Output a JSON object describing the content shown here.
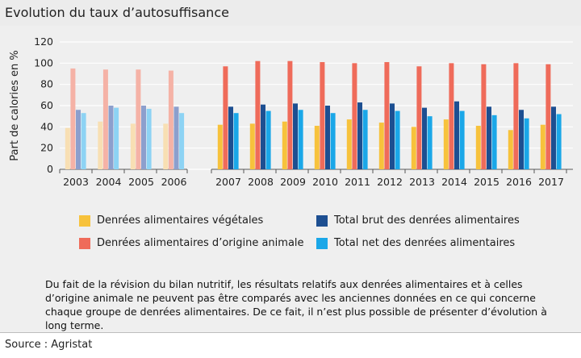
{
  "title": "Evolution du taux d’autosuffisance",
  "source": "Source : Agristat",
  "note": "Du fait de la révision du bilan nutritif, les résultats relatifs aux denrées alimentaires et à celles d’origine animale ne peuvent pas être comparés avec les anciennes données en ce qui concerne chaque groupe de denrées alimentaires. De ce fait, il n’est plus possible de présenter d’évolution à long terme.",
  "colors": {
    "panel_bg": "#efefef",
    "series_full": [
      "#f7c23c",
      "#ef6b5a",
      "#1d4f91",
      "#1aa7e8"
    ],
    "series_faded": [
      "#f8dfb3",
      "#f5b2a6",
      "#8c9fcd",
      "#8dd3f4"
    ]
  },
  "chart_data": {
    "type": "bar",
    "title": "",
    "xlabel": "",
    "ylabel": "Part de calories en %",
    "ylim": [
      0,
      120
    ],
    "yticks": [
      0,
      20,
      40,
      60,
      80,
      100,
      120
    ],
    "grid": true,
    "legend_position": "bottom",
    "categories": [
      "2003",
      "2004",
      "2005",
      "2006",
      "2007",
      "2008",
      "2009",
      "2010",
      "2011",
      "2012",
      "2013",
      "2014",
      "2015",
      "2016",
      "2017"
    ],
    "faded_categories": [
      "2003",
      "2004",
      "2005",
      "2006"
    ],
    "series": [
      {
        "name": "Denrées alimentaires végétales",
        "values": [
          39,
          45,
          43,
          43,
          42,
          43,
          45,
          41,
          47,
          44,
          40,
          47,
          41,
          37,
          42
        ]
      },
      {
        "name": "Denrées alimentaires d’origine animale",
        "values": [
          95,
          94,
          94,
          93,
          97,
          102,
          102,
          101,
          100,
          101,
          97,
          100,
          99,
          100,
          99
        ]
      },
      {
        "name": "Total brut des denrées alimentaires",
        "values": [
          56,
          60,
          60,
          59,
          59,
          61,
          62,
          60,
          63,
          62,
          58,
          64,
          59,
          56,
          59
        ]
      },
      {
        "name": "Total net des denrées alimentaires",
        "values": [
          53,
          58,
          57,
          53,
          53,
          55,
          56,
          53,
          56,
          55,
          50,
          55,
          51,
          48,
          52
        ]
      }
    ]
  },
  "legend": [
    {
      "label": "Denrées alimentaires végétales",
      "color": "#f7c23c"
    },
    {
      "label": "Total brut des denrées alimentaires",
      "color": "#1d4f91"
    },
    {
      "label": "Denrées alimentaires d’origine animale",
      "color": "#ef6b5a"
    },
    {
      "label": "Total net des denrées alimentaires",
      "color": "#1aa7e8"
    }
  ]
}
